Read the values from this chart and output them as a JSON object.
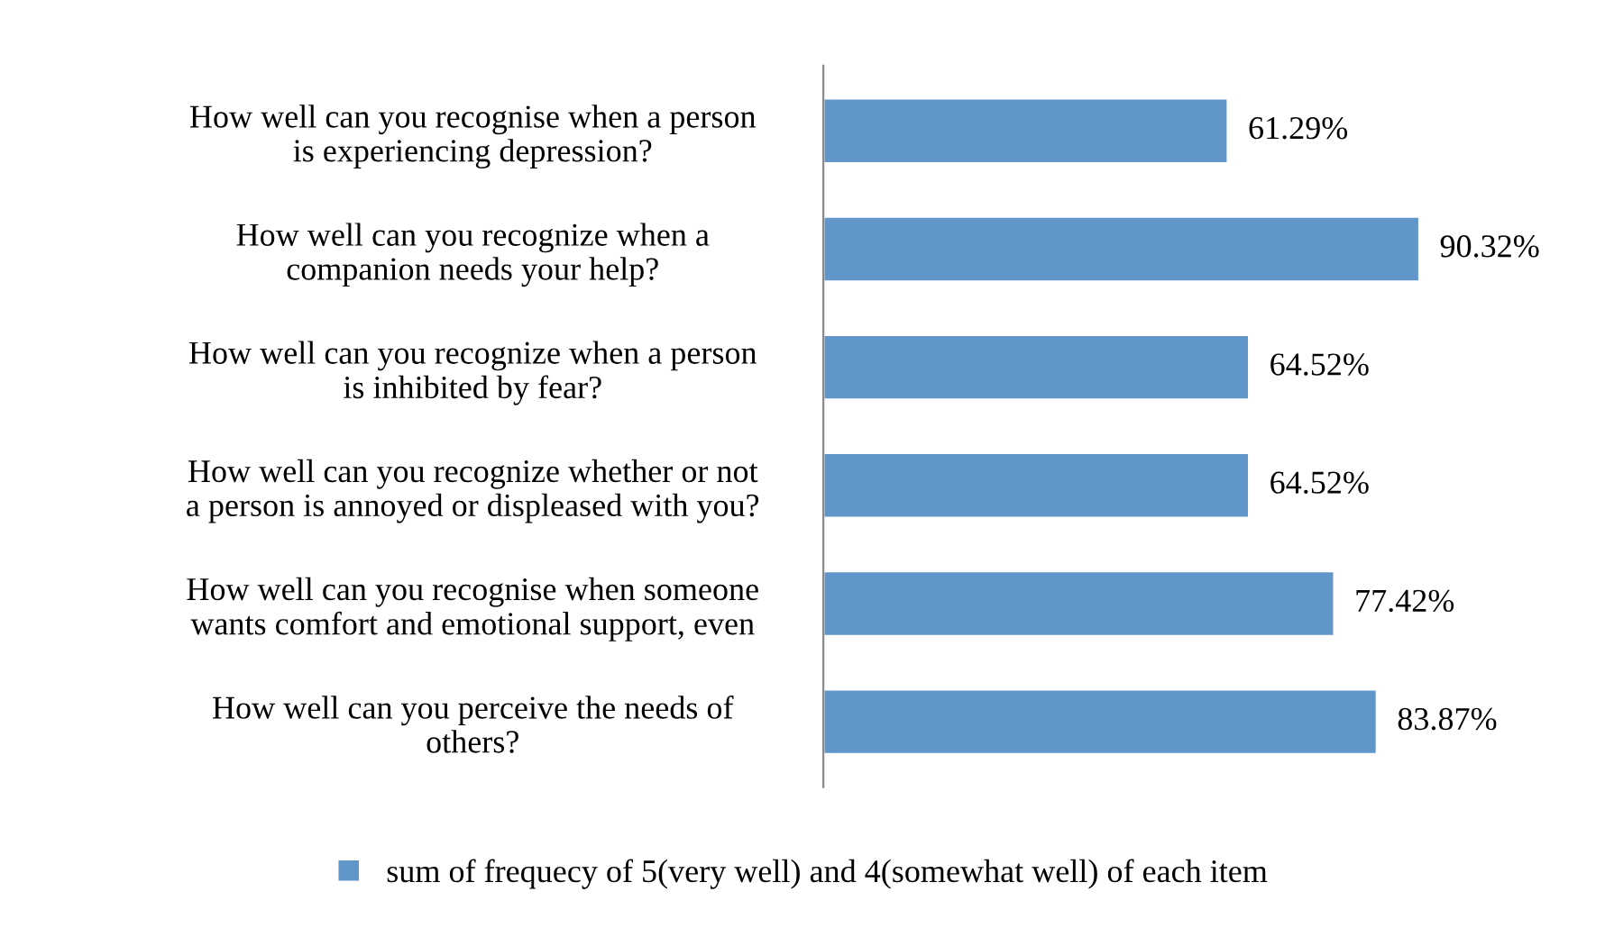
{
  "chart_data": {
    "type": "bar",
    "orientation": "horizontal",
    "categories": [
      "How well can you recognise when a person\nis experiencing depression?",
      "How well can you recognize when a\ncompanion needs your help?",
      "How well can you recognize when a person\nis inhibited by fear?",
      "How well can you recognize whether or not\na person is annoyed or displeased with you?",
      "How well can you recognise when someone\nwants comfort and emotional support, even",
      "How well can you perceive the needs of\nothers?"
    ],
    "series": [
      {
        "name": "sum of frequecy of 5(very well) and 4(somewhat well) of each item",
        "color": "#6096c9",
        "values": [
          61.29,
          90.32,
          64.52,
          64.52,
          77.42,
          83.87
        ],
        "value_labels": [
          "61.29%",
          "90.32%",
          "64.52%",
          "64.52%",
          "77.42%",
          "83.87%"
        ]
      }
    ],
    "tick_labels": "y",
    "legend": "bottom",
    "grid": false
  }
}
